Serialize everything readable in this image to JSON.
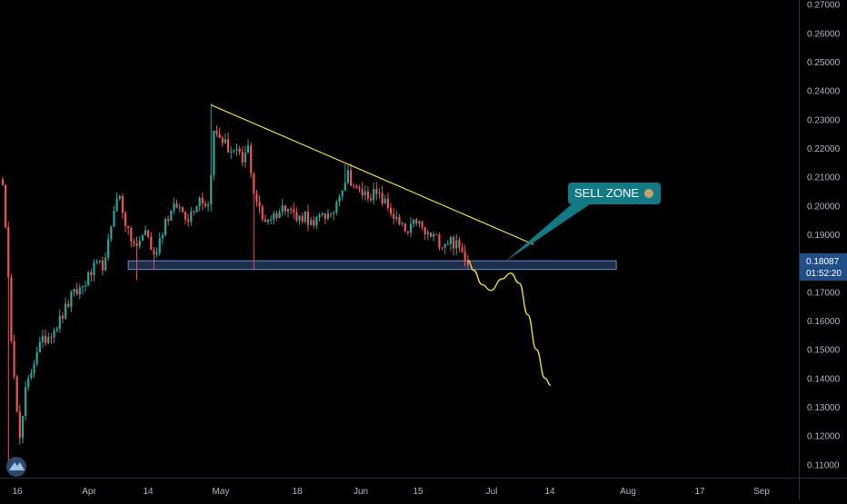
{
  "colors": {
    "background": "#000000",
    "up": "#26a69a",
    "down": "#ef5350",
    "trendline": "#e7dd3a",
    "projection": "#e7dd3a",
    "zone_fill": "#1e3355",
    "zone_stroke": "#6c8cc2",
    "callout": "#117a85",
    "price_label": "#1f4f86",
    "axis_text": "#b2b5be"
  },
  "chart_data": {
    "type": "candlestick",
    "price_axis_ticks": [
      "0.27000",
      "0.26000",
      "0.25000",
      "0.24000",
      "0.23000",
      "0.22000",
      "0.21000",
      "0.20000",
      "0.19000",
      "0.18000",
      "0.17000",
      "0.16000",
      "0.15000",
      "0.14000",
      "0.13000",
      "0.12000",
      "0.11000"
    ],
    "time_axis_ticks": [
      "16",
      "Apr",
      "14",
      "May",
      "18",
      "Jun",
      "15",
      "Jul",
      "14",
      "Aug",
      "17",
      "Sep"
    ],
    "ylim": [
      0.106,
      0.2715
    ],
    "current_price": "0.18087",
    "countdown": "01:52:20",
    "anchors": [
      [
        0,
        0.209
      ],
      [
        3,
        0.155
      ],
      [
        6,
        0.118
      ],
      [
        8,
        0.135
      ],
      [
        12,
        0.15
      ],
      [
        16,
        0.155
      ],
      [
        20,
        0.16
      ],
      [
        24,
        0.168
      ],
      [
        28,
        0.172
      ],
      [
        32,
        0.178
      ],
      [
        36,
        0.18
      ],
      [
        39,
        0.2
      ],
      [
        41,
        0.203
      ],
      [
        44,
        0.19
      ],
      [
        47,
        0.185
      ],
      [
        50,
        0.192
      ],
      [
        53,
        0.182
      ],
      [
        57,
        0.195
      ],
      [
        61,
        0.2
      ],
      [
        65,
        0.196
      ],
      [
        69,
        0.203
      ],
      [
        72,
        0.2
      ],
      [
        74,
        0.225
      ],
      [
        76,
        0.224
      ],
      [
        79,
        0.22
      ],
      [
        82,
        0.218
      ],
      [
        84,
        0.215
      ],
      [
        86,
        0.22
      ],
      [
        88,
        0.205
      ],
      [
        91,
        0.195
      ],
      [
        94,
        0.196
      ],
      [
        97,
        0.198
      ],
      [
        100,
        0.201
      ],
      [
        103,
        0.195
      ],
      [
        106,
        0.197
      ],
      [
        109,
        0.192
      ],
      [
        112,
        0.198
      ],
      [
        115,
        0.195
      ],
      [
        118,
        0.205
      ],
      [
        121,
        0.211
      ],
      [
        124,
        0.205
      ],
      [
        127,
        0.204
      ],
      [
        130,
        0.204
      ],
      [
        133,
        0.202
      ],
      [
        136,
        0.198
      ],
      [
        139,
        0.193
      ],
      [
        142,
        0.19
      ],
      [
        145,
        0.195
      ],
      [
        148,
        0.19
      ],
      [
        151,
        0.189
      ],
      [
        154,
        0.187
      ],
      [
        157,
        0.188
      ],
      [
        160,
        0.185
      ],
      [
        163,
        0.181
      ]
    ],
    "spikes": [
      {
        "i": 2,
        "low": 0.108
      },
      {
        "i": 8,
        "low": 0.129
      },
      {
        "i": 17,
        "low": 0.155
      },
      {
        "i": 73,
        "high": 0.2355
      },
      {
        "i": 88,
        "low": 0.1775
      },
      {
        "i": 120,
        "high": 0.2145
      },
      {
        "i": 47,
        "low": 0.174
      },
      {
        "i": 53,
        "low": 0.178
      }
    ],
    "trendline": {
      "from": [
        73,
        0.235
      ],
      "to": [
        186,
        0.1865
      ]
    },
    "support_zone": {
      "from_index": 44,
      "to_index": 215,
      "low": 0.1778,
      "high": 0.1808
    },
    "projection_path": [
      [
        163,
        0.181
      ],
      [
        165,
        0.1775
      ],
      [
        168,
        0.1725
      ],
      [
        171,
        0.1705
      ],
      [
        175,
        0.1745
      ],
      [
        178,
        0.1765
      ],
      [
        181,
        0.173
      ],
      [
        184,
        0.162
      ],
      [
        187,
        0.15
      ],
      [
        190,
        0.14
      ],
      [
        192,
        0.1375
      ]
    ],
    "annotation": {
      "text": "SELL ZONE",
      "tip": [
        176,
        0.1805
      ]
    }
  }
}
